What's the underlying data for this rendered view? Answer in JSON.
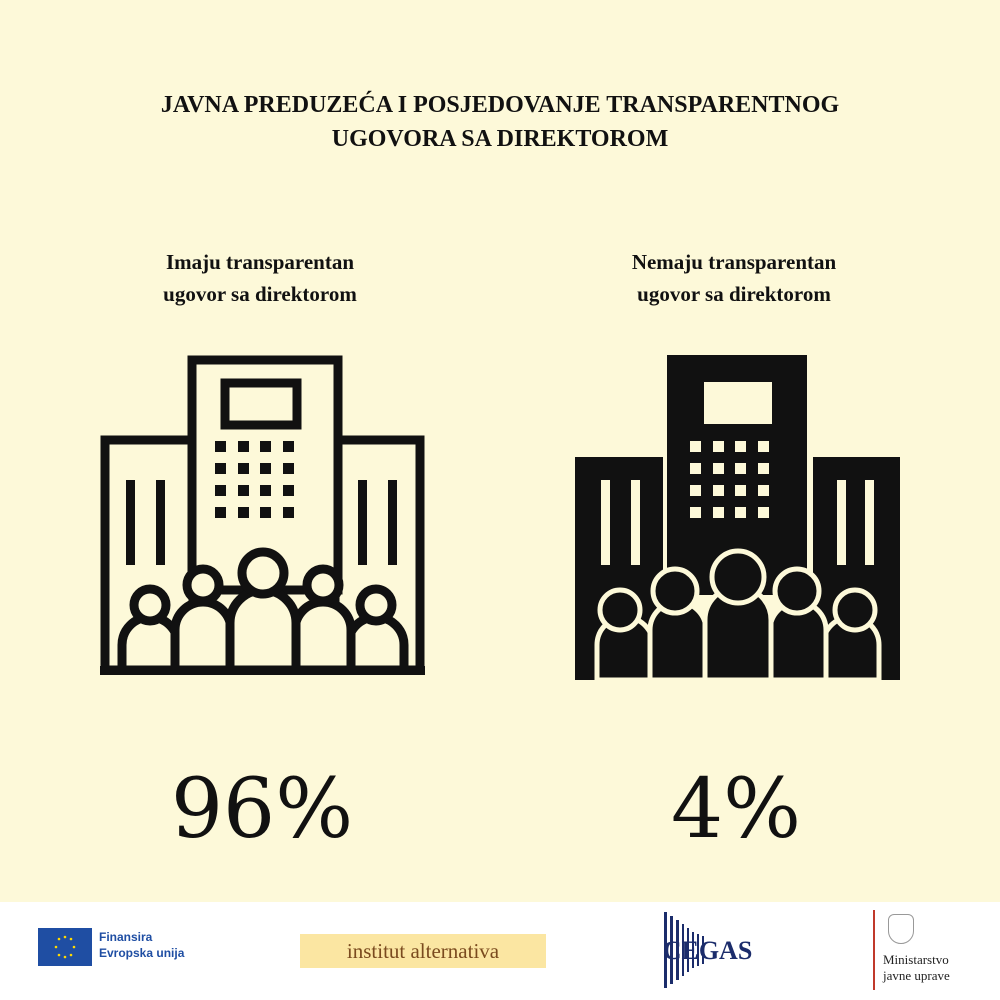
{
  "title": [
    "JAVNA PREDUZEĆA I POSJEDOVANJE TRANSPARENTNOG",
    "UGOVORA SA DIREKTOROM"
  ],
  "groups": [
    {
      "label": [
        "Imaju transparentan",
        "ugovor sa direktorom"
      ],
      "percent": "96%",
      "value": 96
    },
    {
      "label": [
        "Nemaju transparentan",
        "ugovor sa direktorom"
      ],
      "percent": "4%",
      "value": 4
    }
  ],
  "footer": {
    "eu": [
      "Finansira",
      "Evropska unija"
    ],
    "institut": "institut alternativa",
    "cegas": "CEGAS",
    "ministry": [
      "Ministarstvo",
      "javne uprave"
    ]
  },
  "colors": {
    "background": "#fdf9d9",
    "ink": "#111111",
    "eu_blue": "#1f4ea3"
  }
}
